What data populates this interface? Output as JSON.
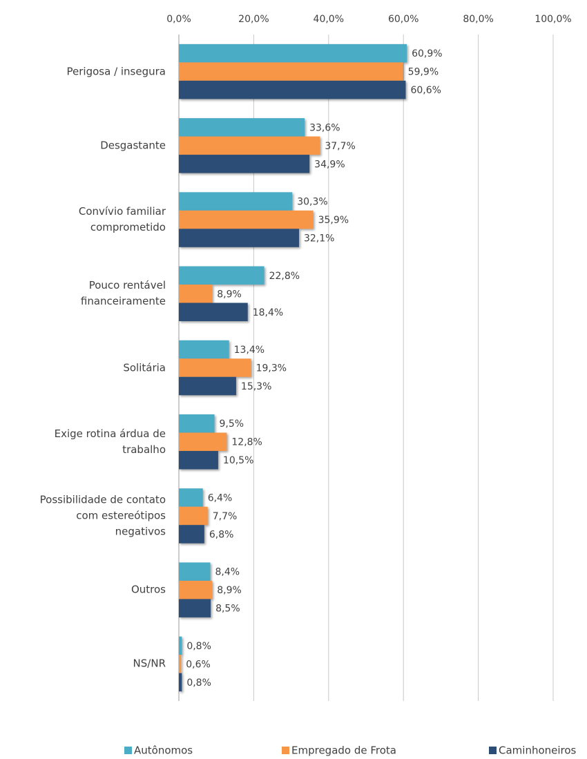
{
  "chart_data": {
    "type": "hbar",
    "categories": [
      "Perigosa / insegura",
      "Desgastante",
      "Convívio familiar comprometido",
      "Pouco rentável financeiramente",
      "Solitária",
      "Exige rotina árdua de trabalho",
      "Possibilidade de contato com estereótipos negativos",
      "Outros",
      "NS/NR"
    ],
    "series": [
      {
        "name": "Autônomos",
        "color": "#4bacc6",
        "values": [
          60.9,
          33.6,
          30.3,
          22.8,
          13.4,
          9.5,
          6.4,
          8.4,
          0.8
        ],
        "value_labels": [
          "60,9%",
          "33,6%",
          "30,3%",
          "22,8%",
          "13,4%",
          "9,5%",
          "6,4%",
          "8,4%",
          "0,8%"
        ]
      },
      {
        "name": "Empregado de Frota",
        "color": "#f79646",
        "values": [
          59.9,
          37.7,
          35.9,
          8.9,
          19.3,
          12.8,
          7.7,
          8.9,
          0.6
        ],
        "value_labels": [
          "59,9%",
          "37,7%",
          "35,9%",
          "8,9%",
          "19,3%",
          "12,8%",
          "7,7%",
          "8,9%",
          "0,6%"
        ]
      },
      {
        "name": "Caminhoneiros",
        "color": "#2c4d75",
        "values": [
          60.6,
          34.9,
          32.1,
          18.4,
          15.3,
          10.5,
          6.8,
          8.5,
          0.8
        ],
        "value_labels": [
          "60,6%",
          "34,9%",
          "32,1%",
          "18,4%",
          "15,3%",
          "10,5%",
          "6,8%",
          "8,5%",
          "0,8%"
        ]
      }
    ],
    "xlim": [
      0,
      100
    ],
    "xticks": [
      {
        "value": 0,
        "label": "0,0%"
      },
      {
        "value": 20,
        "label": "20,0%"
      },
      {
        "value": 40,
        "label": "40,0%"
      },
      {
        "value": 60,
        "label": "60,0%"
      },
      {
        "value": 80,
        "label": "80,0%"
      },
      {
        "value": 100,
        "label": "100,0%"
      }
    ],
    "grid": true,
    "legend": "bottom"
  }
}
